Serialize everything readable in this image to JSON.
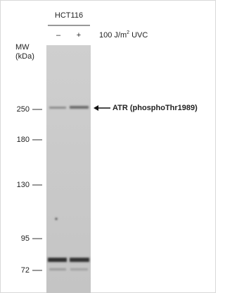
{
  "header": {
    "cell_line": "HCT116",
    "lanes": [
      "–",
      "+"
    ],
    "treatment": {
      "text": "100 J/m",
      "sup": "2",
      "unit": " UVC"
    }
  },
  "mw_label": {
    "line1": "MW",
    "line2": "(kDa)"
  },
  "markers": [
    "250",
    "180",
    "130",
    "95",
    "72"
  ],
  "annotation": "ATR (phosphoThr1989)"
}
